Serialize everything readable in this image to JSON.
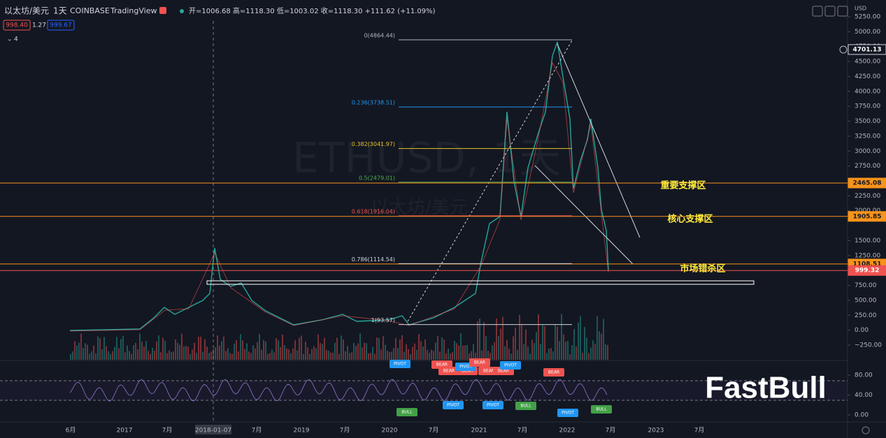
{
  "header": {
    "symbol": "以太坊/美元",
    "interval": "1天",
    "exchange": "COINBASE",
    "platform": "TradingView",
    "ohlc": "开=1006.68 高=1118.30 低=1003.02 收=1118.30 +111.62 (+11.09%)",
    "bid": "998.40",
    "spread": "1.27",
    "ask": "999.67",
    "indicator_count": "4"
  },
  "watermark": {
    "line1": "ETHUSD, 1天",
    "line2": "以太坊/美元"
  },
  "price_axis": {
    "currency": "USD",
    "ylim": [
      -250,
      5250
    ],
    "ticks": [
      {
        "value": 5250,
        "label": "5250.00"
      },
      {
        "value": 5000,
        "label": "5000.00"
      },
      {
        "value": 4750,
        "label": "4750.00"
      },
      {
        "value": 4500,
        "label": "4500.00"
      },
      {
        "value": 4250,
        "label": "4250.00"
      },
      {
        "value": 4000,
        "label": "4000.00"
      },
      {
        "value": 3750,
        "label": "3750.00"
      },
      {
        "value": 3500,
        "label": "3500.00"
      },
      {
        "value": 3250,
        "label": "3250.00"
      },
      {
        "value": 3000,
        "label": "3000.00"
      },
      {
        "value": 2750,
        "label": "2750.00"
      },
      {
        "value": 2250,
        "label": "2250.00"
      },
      {
        "value": 2000,
        "label": "2000.00"
      },
      {
        "value": 1500,
        "label": "1500.00"
      },
      {
        "value": 1250,
        "label": "1250.00"
      },
      {
        "value": 750,
        "label": "750.00"
      },
      {
        "value": 500,
        "label": "500.00"
      },
      {
        "value": 250,
        "label": "250.00"
      },
      {
        "value": 0,
        "label": "0.00"
      },
      {
        "value": -250,
        "label": "−250.00"
      }
    ],
    "badges": [
      {
        "value": 4701.13,
        "label": "4701.13",
        "color": "#131722"
      },
      {
        "value": 2465.08,
        "label": "2465.08",
        "color": "#f7931a"
      },
      {
        "value": 1905.85,
        "label": "1905.85",
        "color": "#f7931a"
      },
      {
        "value": 1108.51,
        "label": "1108.51",
        "color": "#f7931a"
      },
      {
        "value": 999.32,
        "label": "999.32",
        "color": "#ef5350"
      }
    ]
  },
  "fib_levels": [
    {
      "value": 4864.44,
      "label": "0(4864.44)",
      "color": "#b2b5be"
    },
    {
      "value": 3738.51,
      "label": "0.236(3738.51)",
      "color": "#2196f3"
    },
    {
      "value": 3041.97,
      "label": "0.382(3041.97)",
      "color": "#e6c229"
    },
    {
      "value": 2479.01,
      "label": "0.5(2479.01)",
      "color": "#4caf50"
    },
    {
      "value": 1916.04,
      "label": "0.618(1916.04)",
      "color": "#ef5350"
    },
    {
      "value": 1114.54,
      "label": "0.786(1114.54)",
      "color": "#d1d4dc"
    },
    {
      "value": 93.57,
      "label": "1(93.57)",
      "color": "#d1d4dc"
    }
  ],
  "annotations": [
    {
      "value": 2465.08,
      "label": "重要支撑区"
    },
    {
      "value": 1905.85,
      "label": "核心支撑区"
    },
    {
      "value": 999.32,
      "label": "市场错杀区"
    }
  ],
  "oscillator_axis": [
    {
      "value": 80,
      "label": "80.00"
    },
    {
      "value": 40,
      "label": "40.00"
    },
    {
      "value": 0,
      "label": "0.00"
    }
  ],
  "signals": [
    "PIVOT",
    "BEAR",
    "BEAR",
    "PIVOT",
    "BEAR",
    "PIVOT",
    "BEAR",
    "BEAR",
    "BEAR",
    "BEAR",
    "BULL",
    "PIVOT",
    "PIVOT",
    "BULL",
    "PIVOT",
    "BULL"
  ],
  "time_axis": [
    "6月",
    "2017",
    "7月",
    "2018-01-07",
    "7月",
    "2019",
    "7月",
    "2020",
    "7月",
    "2021",
    "7月",
    "2022",
    "7月",
    "2023",
    "7月"
  ],
  "logo": "FastBull"
}
